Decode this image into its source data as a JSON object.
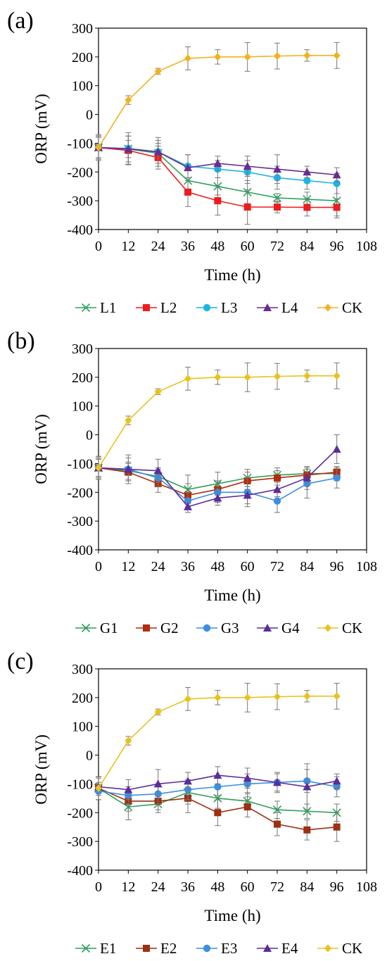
{
  "chart_data": [
    {
      "panel_label": "(a)",
      "type": "line",
      "x": [
        0,
        12,
        24,
        36,
        48,
        60,
        72,
        84,
        96
      ],
      "xlabel": "Time (h)",
      "ylabel": "ORP (mV)",
      "xlim": [
        0,
        108
      ],
      "ylim": [
        -400,
        300
      ],
      "xticks": [
        0,
        12,
        24,
        36,
        48,
        60,
        72,
        84,
        96,
        108
      ],
      "yticks": [
        -400,
        -300,
        -200,
        -100,
        0,
        100,
        200,
        300
      ],
      "legend_position": "bottom",
      "series": [
        {
          "name": "L1",
          "marker": "x",
          "color": "#2ca25f",
          "values": [
            -115,
            -120,
            -135,
            -230,
            -250,
            -270,
            -290,
            -295,
            -300
          ],
          "errors": [
            45,
            30,
            35,
            35,
            30,
            40,
            15,
            25,
            60
          ]
        },
        {
          "name": "L2",
          "marker": "square",
          "color": "#ee1c1c",
          "values": [
            -115,
            -125,
            -150,
            -270,
            -300,
            -322,
            -322,
            -323,
            -323
          ],
          "errors": [
            40,
            50,
            40,
            50,
            50,
            60,
            20,
            30,
            30
          ]
        },
        {
          "name": "L3",
          "marker": "circle",
          "color": "#1fb4e6",
          "values": [
            -115,
            -118,
            -130,
            -180,
            -190,
            -200,
            -220,
            -230,
            -240
          ],
          "errors": [
            35,
            55,
            40,
            40,
            30,
            40,
            40,
            30,
            35
          ]
        },
        {
          "name": "L4",
          "marker": "triangle",
          "color": "#6a2c91",
          "values": [
            -115,
            -120,
            -130,
            -185,
            -170,
            -180,
            -190,
            -200,
            -210
          ],
          "errors": [
            40,
            45,
            50,
            45,
            25,
            35,
            50,
            20,
            25
          ]
        },
        {
          "name": "CK",
          "marker": "diamond",
          "color": "#f2b21e",
          "values": [
            -115,
            50,
            150,
            195,
            200,
            200,
            203,
            205,
            205
          ],
          "errors": [
            40,
            15,
            10,
            40,
            25,
            50,
            45,
            20,
            45
          ]
        }
      ]
    },
    {
      "panel_label": "(b)",
      "type": "line",
      "x": [
        0,
        12,
        24,
        36,
        48,
        60,
        72,
        84,
        96
      ],
      "xlabel": "Time (h)",
      "ylabel": "ORP (mV)",
      "xlim": [
        0,
        108
      ],
      "ylim": [
        -400,
        300
      ],
      "xticks": [
        0,
        12,
        24,
        36,
        48,
        60,
        72,
        84,
        96,
        108
      ],
      "yticks": [
        -400,
        -300,
        -200,
        -100,
        0,
        100,
        200,
        300
      ],
      "legend_position": "bottom",
      "series": [
        {
          "name": "G1",
          "marker": "x",
          "color": "#2f9e5a",
          "values": [
            -115,
            -125,
            -145,
            -190,
            -170,
            -150,
            -140,
            -135,
            -135
          ],
          "errors": [
            30,
            30,
            30,
            50,
            40,
            30,
            25,
            25,
            25
          ]
        },
        {
          "name": "G2",
          "marker": "square",
          "color": "#b22d0e",
          "values": [
            -115,
            -130,
            -170,
            -210,
            -190,
            -160,
            -150,
            -140,
            -130
          ],
          "errors": [
            35,
            30,
            30,
            40,
            30,
            30,
            25,
            25,
            20
          ]
        },
        {
          "name": "G3",
          "marker": "circle",
          "color": "#3d8ee0",
          "values": [
            -115,
            -120,
            -150,
            -230,
            -200,
            -200,
            -230,
            -170,
            -150
          ],
          "errors": [
            30,
            40,
            30,
            30,
            35,
            50,
            40,
            50,
            35
          ]
        },
        {
          "name": "G4",
          "marker": "triangle",
          "color": "#5a2d9c",
          "values": [
            -115,
            -120,
            -125,
            -250,
            -220,
            -210,
            -190,
            -150,
            -50
          ],
          "errors": [
            40,
            50,
            40,
            20,
            25,
            30,
            25,
            40,
            50
          ]
        },
        {
          "name": "CK",
          "marker": "diamond",
          "color": "#e8c21e",
          "values": [
            -115,
            50,
            150,
            195,
            200,
            200,
            203,
            205,
            205
          ],
          "errors": [
            40,
            15,
            10,
            40,
            25,
            50,
            45,
            20,
            45
          ]
        }
      ]
    },
    {
      "panel_label": "(c)",
      "type": "line",
      "x": [
        0,
        12,
        24,
        36,
        48,
        60,
        72,
        84,
        96
      ],
      "xlabel": "Time (h)",
      "ylabel": "ORP (mV)",
      "xlim": [
        0,
        108
      ],
      "ylim": [
        -400,
        300
      ],
      "xticks": [
        0,
        12,
        24,
        36,
        48,
        60,
        72,
        84,
        96,
        108
      ],
      "yticks": [
        -400,
        -300,
        -200,
        -100,
        0,
        100,
        200,
        300
      ],
      "legend_position": "bottom",
      "series": [
        {
          "name": "E1",
          "marker": "x",
          "color": "#2f9e5a",
          "values": [
            -115,
            -180,
            -170,
            -130,
            -150,
            -160,
            -190,
            -195,
            -200
          ],
          "errors": [
            40,
            45,
            30,
            40,
            35,
            30,
            30,
            25,
            30
          ]
        },
        {
          "name": "E2",
          "marker": "square",
          "color": "#9c3012",
          "values": [
            -115,
            -160,
            -160,
            -150,
            -200,
            -180,
            -240,
            -260,
            -250
          ],
          "errors": [
            40,
            35,
            30,
            50,
            45,
            35,
            40,
            35,
            50
          ]
        },
        {
          "name": "E3",
          "marker": "circle",
          "color": "#3d8ee0",
          "values": [
            -125,
            -140,
            -135,
            -120,
            -110,
            -100,
            -95,
            -90,
            -110
          ],
          "errors": [
            30,
            30,
            35,
            35,
            30,
            35,
            35,
            40,
            35
          ]
        },
        {
          "name": "E4",
          "marker": "triangle",
          "color": "#5a2d9c",
          "values": [
            -110,
            -120,
            -100,
            -90,
            -70,
            -80,
            -95,
            -110,
            -90
          ],
          "errors": [
            30,
            35,
            50,
            30,
            30,
            35,
            30,
            80,
            25
          ]
        },
        {
          "name": "CK",
          "marker": "diamond",
          "color": "#e8c21e",
          "values": [
            -115,
            50,
            150,
            195,
            200,
            200,
            203,
            205,
            205
          ],
          "errors": [
            40,
            15,
            10,
            40,
            25,
            50,
            45,
            20,
            45
          ]
        }
      ]
    }
  ]
}
